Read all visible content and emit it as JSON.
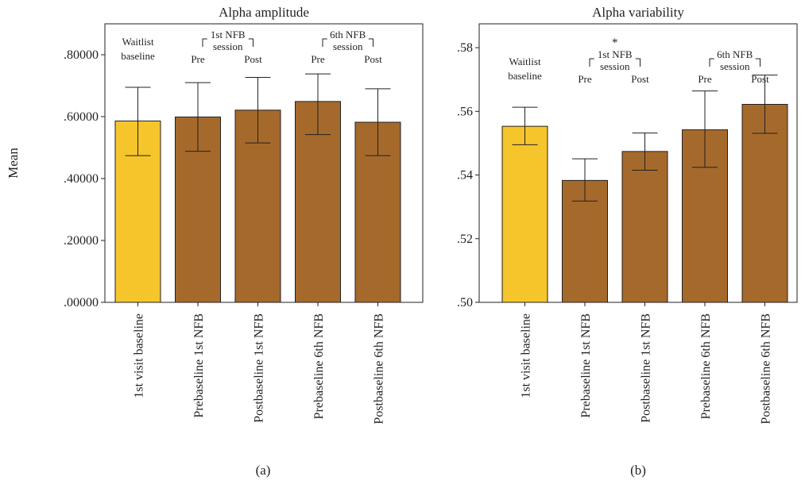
{
  "panels": [
    {
      "label": "(a)",
      "chart_data": {
        "type": "bar",
        "title": "Alpha amplitude",
        "ylabel": "Mean",
        "xlabel": "",
        "ylim": [
          0,
          0.9
        ],
        "yticks": [
          0,
          0.2,
          0.4,
          0.6,
          0.8
        ],
        "ytick_labels": [
          ".00000",
          ".20000",
          ".40000",
          ".60000",
          ".80000"
        ],
        "categories": [
          "1st visit baseline",
          "Prebaseline 1st NFB",
          "Postbaseline 1st NFB",
          "Prebaseline 6th NFB",
          "Postbaseline 6th NFB"
        ],
        "values": [
          0.586,
          0.599,
          0.621,
          0.649,
          0.582
        ],
        "error_low": [
          0.474,
          0.488,
          0.515,
          0.542,
          0.474
        ],
        "error_high": [
          0.695,
          0.71,
          0.727,
          0.738,
          0.69
        ],
        "bar_colors": [
          "#f5c52b",
          "#a56a2b",
          "#a56a2b",
          "#a56a2b",
          "#a56a2b"
        ],
        "grid": false
      },
      "annotations": {
        "waitlist": [
          "Waitlist",
          "baseline"
        ],
        "groups": [
          {
            "label": [
              "1st NFB",
              "session"
            ],
            "pre": "Pre",
            "post": "Post",
            "star": ""
          },
          {
            "label": [
              "6th NFB",
              "session"
            ],
            "pre": "Pre",
            "post": "Post",
            "star": ""
          }
        ]
      }
    },
    {
      "label": "(b)",
      "chart_data": {
        "type": "bar",
        "title": "Alpha variability",
        "ylabel": "",
        "xlabel": "",
        "ylim": [
          0.5,
          0.5875
        ],
        "yticks": [
          0.5,
          0.52,
          0.54,
          0.56,
          0.58
        ],
        "ytick_labels": [
          ".50",
          ".52",
          ".54",
          ".56",
          ".58"
        ],
        "categories": [
          "1st visit baseline",
          "Prebaseline 1st NFB",
          "Postbaseline 1st NFB",
          "Prebaseline 6th NFB",
          "Postbaseline 6th NFB"
        ],
        "values": [
          0.5553,
          0.5383,
          0.5474,
          0.5542,
          0.5622
        ],
        "error_low": [
          0.5495,
          0.5318,
          0.5415,
          0.5424,
          0.5531
        ],
        "error_high": [
          0.5613,
          0.5451,
          0.5532,
          0.5664,
          0.5714
        ],
        "bar_colors": [
          "#f5c52b",
          "#a56a2b",
          "#a56a2b",
          "#a56a2b",
          "#a56a2b"
        ],
        "grid": false
      },
      "annotations": {
        "waitlist": [
          "Waitlist",
          "baseline"
        ],
        "groups": [
          {
            "label": [
              "1st NFB",
              "session"
            ],
            "pre": "Pre",
            "post": "Post",
            "star": "*"
          },
          {
            "label": [
              "6th NFB",
              "session"
            ],
            "pre": "Pre",
            "post": "Post",
            "star": ""
          }
        ]
      }
    }
  ]
}
